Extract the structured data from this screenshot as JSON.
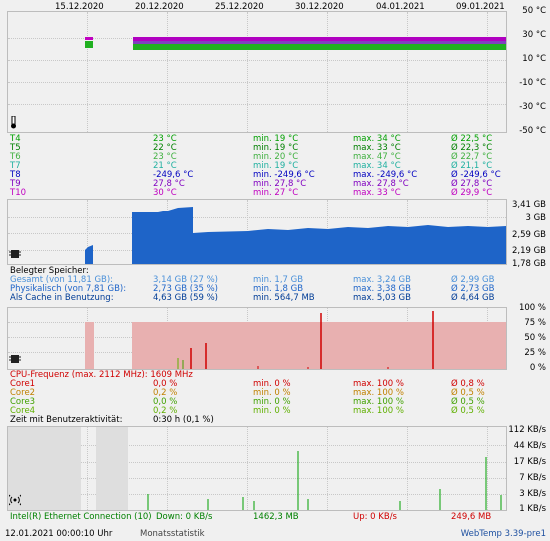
{
  "date_axis": [
    "15.12.2020",
    "20.12.2020",
    "25.12.2020",
    "30.12.2020",
    "04.01.2021",
    "09.01.2021"
  ],
  "temp_panel": {
    "ticks": [
      "50 °C",
      "30 °C",
      "10 °C",
      "-10 °C",
      "-30 °C",
      "-50 °C"
    ],
    "sensors": [
      {
        "name": "T4",
        "cur": "23 °C",
        "min": "min. 19 °C",
        "max": "max. 34 °C",
        "avg": "Ø 22,5 °C",
        "color": "#00a000"
      },
      {
        "name": "T5",
        "cur": "22 °C",
        "min": "min. 19 °C",
        "max": "max. 33 °C",
        "avg": "Ø 22,3 °C",
        "color": "#008000"
      },
      {
        "name": "T6",
        "cur": "23 °C",
        "min": "min. 20 °C",
        "max": "max. 47 °C",
        "avg": "Ø 22,7 °C",
        "color": "#40b040"
      },
      {
        "name": "T7",
        "cur": "21 °C",
        "min": "min. 19 °C",
        "max": "max. 34 °C",
        "avg": "Ø 21,1 °C",
        "color": "#20b0a0"
      },
      {
        "name": "T8",
        "cur": "-249,6 °C",
        "min": "min. -249,6 °C",
        "max": "max. -249,6 °C",
        "avg": "Ø -249,6 °C",
        "color": "#0000c0"
      },
      {
        "name": "T9",
        "cur": "27,8 °C",
        "min": "min. 27,8 °C",
        "max": "max. 27,8 °C",
        "avg": "Ø 27,8 °C",
        "color": "#8000c0"
      },
      {
        "name": "T10",
        "cur": "30 °C",
        "min": "min. 27 °C",
        "max": "max. 33 °C",
        "avg": "Ø 29,9 °C",
        "color": "#c000c0"
      }
    ]
  },
  "mem_panel": {
    "ticks": [
      "3,41 GB",
      "3 GB",
      "2,59 GB",
      "2,19 GB",
      "1,78 GB"
    ],
    "title": "Belegter Speicher:",
    "rows": [
      {
        "name": "Gesamt (von 11,81 GB):",
        "cur": "3,14 GB (27 %)",
        "min": "min. 1,7 GB",
        "max": "max. 3,24 GB",
        "avg": "Ø 2,99 GB",
        "color": "#4a90d9"
      },
      {
        "name": "Physikalisch (von 7,81 GB):",
        "cur": "2,73 GB (35 %)",
        "min": "min. 1,8 GB",
        "max": "max. 3,38 GB",
        "avg": "Ø 2,73 GB",
        "color": "#1e64c8"
      },
      {
        "name": "Als Cache in Benutzung:",
        "cur": "4,63 GB (59 %)",
        "min": "min. 564,7 MB",
        "max": "max. 5,03 GB",
        "avg": "Ø 4,64 GB",
        "color": "#003c96"
      }
    ]
  },
  "cpu_panel": {
    "ticks": [
      "100 %",
      "75 %",
      "50 %",
      "25 %",
      "0 %"
    ],
    "freq_label": "CPU-Frequenz (max. 2112 MHz):",
    "freq_value": "1609 MHz",
    "cores": [
      {
        "name": "Core1",
        "cur": "0,0 %",
        "min": "min. 0 %",
        "max": "max. 100 %",
        "avg": "Ø 0,8 %",
        "color": "#d00000"
      },
      {
        "name": "Core2",
        "cur": "0,2 %",
        "min": "min. 0 %",
        "max": "max. 100 %",
        "avg": "Ø 0,5 %",
        "color": "#c08000"
      },
      {
        "name": "Core3",
        "cur": "0,0 %",
        "min": "min. 0 %",
        "max": "max. 100 %",
        "avg": "Ø 0,5 %",
        "color": "#40a000"
      },
      {
        "name": "Core4",
        "cur": "0,2 %",
        "min": "min. 0 %",
        "max": "max. 100 %",
        "avg": "Ø 0,5 %",
        "color": "#60b000"
      }
    ],
    "activity_label": "Zeit mit Benutzeraktivität:",
    "activity_value": "0:30 h (0,1 %)"
  },
  "net_panel": {
    "ticks": [
      "112 KB/s",
      "44 KB/s",
      "17 KB/s",
      "7 KB/s",
      "3 KB/s",
      "1 KB/s"
    ],
    "adapter": "Intel(R) Ethernet Connection (10)",
    "down": "Down: 0 KB/s",
    "down_total": "1462,3 MB",
    "up": "Up: 0 KB/s",
    "up_total": "249,6 MB"
  },
  "footer": {
    "timestamp": "12.01.2021 00:00:10 Uhr",
    "mode": "Monatsstatistik",
    "version": "WebTemp 3.39-pre1"
  }
}
